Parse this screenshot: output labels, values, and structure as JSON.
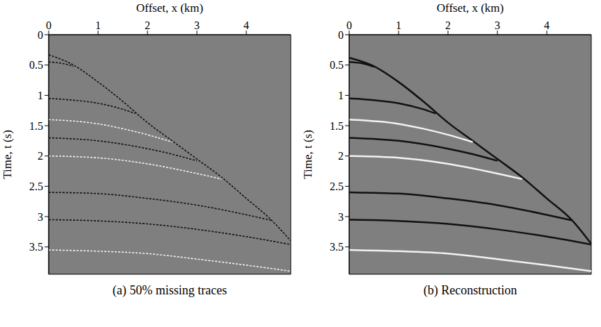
{
  "chart_data": [
    {
      "type": "line",
      "title": "(a) 50% missing traces",
      "x_label": "Offset, x (km)",
      "y_label": "Time, t (s)",
      "xlim": [
        0,
        4.9
      ],
      "xticks": [
        0,
        1,
        2,
        3,
        4
      ],
      "ylim": [
        0,
        3.95
      ],
      "yticks": [
        0,
        0.5,
        1,
        1.5,
        2,
        2.5,
        3,
        3.5
      ],
      "grid": false,
      "series": [
        {
          "color": "#111111",
          "line_style": "dashed",
          "x": [
            0,
            0.5,
            1,
            1.5,
            2,
            2.5,
            3,
            3.5,
            4,
            4.5,
            4.9
          ],
          "values": [
            0.33,
            0.5,
            0.78,
            1.1,
            1.45,
            1.75,
            2.05,
            2.35,
            2.7,
            3.05,
            3.4
          ]
        },
        {
          "color": "#111111",
          "line_style": "dashed",
          "x": [
            0,
            0.25,
            0.5
          ],
          "values": [
            0.45,
            0.47,
            0.52
          ]
        },
        {
          "color": "#111111",
          "line_style": "dashed",
          "x": [
            0,
            0.5,
            1,
            1.5,
            1.75
          ],
          "values": [
            1.05,
            1.08,
            1.13,
            1.23,
            1.3
          ]
        },
        {
          "color": "#f2f2f2",
          "line_style": "dashed",
          "x": [
            0,
            1,
            1.5,
            2,
            2.5
          ],
          "values": [
            1.4,
            1.47,
            1.55,
            1.65,
            1.77
          ]
        },
        {
          "color": "#111111",
          "line_style": "dashed",
          "x": [
            0,
            1,
            2,
            2.5,
            3
          ],
          "values": [
            1.7,
            1.75,
            1.88,
            1.97,
            2.08
          ]
        },
        {
          "color": "#f2f2f2",
          "line_style": "dashed",
          "x": [
            0,
            1,
            2,
            3,
            3.5
          ],
          "values": [
            2.0,
            2.03,
            2.13,
            2.29,
            2.38
          ]
        },
        {
          "color": "#111111",
          "line_style": "dashed",
          "x": [
            0,
            1,
            2,
            3,
            4,
            4.5
          ],
          "values": [
            2.6,
            2.62,
            2.7,
            2.81,
            2.97,
            3.06
          ]
        },
        {
          "color": "#111111",
          "line_style": "dashed",
          "x": [
            0,
            1,
            2,
            3,
            4,
            4.9
          ],
          "values": [
            3.05,
            3.07,
            3.12,
            3.21,
            3.33,
            3.46
          ]
        },
        {
          "color": "#f2f2f2",
          "line_style": "dashed",
          "x": [
            0,
            1,
            2,
            3,
            4,
            4.9
          ],
          "values": [
            3.55,
            3.57,
            3.61,
            3.7,
            3.8,
            3.9
          ]
        }
      ]
    },
    {
      "type": "line",
      "title": "(b) Reconstruction",
      "x_label": "Offset, x (km)",
      "y_label": "Time, t (s)",
      "xlim": [
        0,
        4.9
      ],
      "xticks": [
        0,
        1,
        2,
        3,
        4
      ],
      "ylim": [
        0,
        3.95
      ],
      "yticks": [
        0,
        0.5,
        1,
        1.5,
        2,
        2.5,
        3,
        3.5
      ],
      "grid": false,
      "series": [
        {
          "color": "#111111",
          "line_style": "solid",
          "x": [
            0,
            0.5,
            1,
            1.5,
            2,
            2.5,
            3,
            3.5,
            4,
            4.5,
            4.9
          ],
          "values": [
            0.38,
            0.52,
            0.78,
            1.1,
            1.45,
            1.75,
            2.05,
            2.35,
            2.7,
            3.05,
            3.45
          ]
        },
        {
          "color": "#111111",
          "line_style": "solid",
          "x": [
            0,
            0.25,
            0.5
          ],
          "values": [
            0.45,
            0.47,
            0.53
          ]
        },
        {
          "color": "#111111",
          "line_style": "solid",
          "x": [
            0,
            0.5,
            1,
            1.5,
            1.75
          ],
          "values": [
            1.05,
            1.08,
            1.13,
            1.23,
            1.3
          ]
        },
        {
          "color": "#f2f2f2",
          "line_style": "solid",
          "x": [
            0,
            1,
            1.5,
            2,
            2.5
          ],
          "values": [
            1.4,
            1.47,
            1.55,
            1.65,
            1.77
          ]
        },
        {
          "color": "#111111",
          "line_style": "solid",
          "x": [
            0,
            1,
            2,
            2.5,
            3
          ],
          "values": [
            1.7,
            1.75,
            1.88,
            1.97,
            2.08
          ]
        },
        {
          "color": "#f2f2f2",
          "line_style": "solid",
          "x": [
            0,
            1,
            2,
            3,
            3.5
          ],
          "values": [
            2.0,
            2.03,
            2.13,
            2.29,
            2.38
          ]
        },
        {
          "color": "#111111",
          "line_style": "solid",
          "x": [
            0,
            1,
            2,
            3,
            4,
            4.5
          ],
          "values": [
            2.6,
            2.62,
            2.7,
            2.81,
            2.97,
            3.06
          ]
        },
        {
          "color": "#111111",
          "line_style": "solid",
          "x": [
            0,
            1,
            2,
            3,
            4,
            4.9
          ],
          "values": [
            3.05,
            3.07,
            3.12,
            3.21,
            3.33,
            3.46
          ]
        },
        {
          "color": "#f2f2f2",
          "line_style": "solid",
          "x": [
            0,
            1,
            2,
            3,
            4,
            4.9
          ],
          "values": [
            3.55,
            3.57,
            3.61,
            3.7,
            3.8,
            3.9
          ]
        }
      ]
    }
  ]
}
